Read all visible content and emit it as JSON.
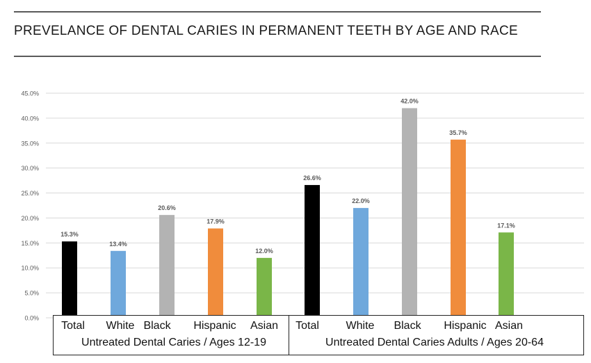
{
  "title": "PREVELANCE OF DENTAL CARIES IN PERMANENT TEETH BY AGE AND RACE",
  "chart_data": {
    "type": "bar",
    "yaxis": {
      "min": 0,
      "max": 45,
      "step": 5,
      "tick_labels": [
        "0.0%",
        "5.0%",
        "10.0%",
        "15.0%",
        "20.0%",
        "25.0%",
        "30.0%",
        "35.0%",
        "40.0%",
        "45.0%"
      ]
    },
    "grid": true,
    "groups": [
      {
        "name": "Untreated Dental Caries / Ages 12-19",
        "categories": [
          "Total",
          "White",
          "Black",
          "Hispanic",
          "Asian"
        ],
        "values": [
          15.3,
          13.4,
          20.6,
          17.9,
          12.0
        ],
        "labels": [
          "15.3%",
          "13.4%",
          "20.6%",
          "17.9%",
          "12.0%"
        ]
      },
      {
        "name": "Untreated Dental Caries Adults / Ages 20-64",
        "categories": [
          "Total",
          "White",
          "Black",
          "Hispanic",
          "Asian"
        ],
        "values": [
          26.6,
          22.0,
          42.0,
          35.7,
          17.1
        ],
        "labels": [
          "26.6%",
          "22.0%",
          "42.0%",
          "35.7%",
          "17.1%"
        ]
      }
    ],
    "colors": {
      "Total": "#000000",
      "White": "#6fa8dc",
      "Black": "#b3b3b3",
      "Hispanic": "#f08c3c",
      "Asian": "#7ab648"
    }
  }
}
